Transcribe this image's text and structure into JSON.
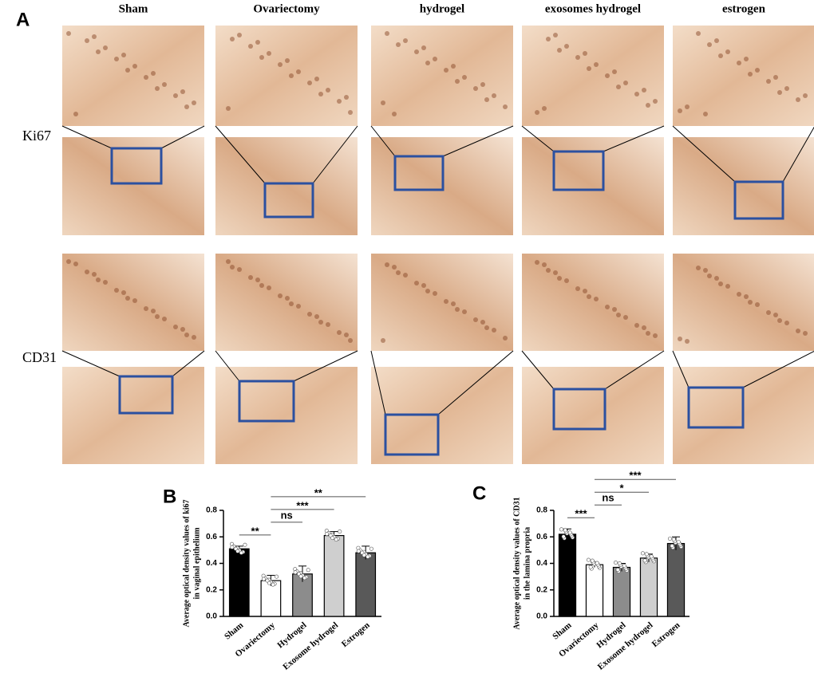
{
  "panel_a": {
    "label": "A",
    "columns": [
      "Sham",
      "Ovariectomy",
      "hydrogel",
      "exosomes hydrogel",
      "estrogen"
    ],
    "rows": [
      "Ki67",
      "CD31"
    ]
  },
  "chart_data": [
    {
      "type": "bar",
      "label": "B",
      "ylabel": [
        "Average optical density values of ki67",
        "in vaginal epithelium"
      ],
      "categories": [
        "Sham",
        "Ovariectomy",
        "Hydrogel",
        "Exosome hydrogel",
        "Estrogen"
      ],
      "values": [
        0.51,
        0.27,
        0.32,
        0.61,
        0.48
      ],
      "errors": [
        0.02,
        0.04,
        0.06,
        0.03,
        0.05
      ],
      "colors": [
        "#000000",
        "#ffffff",
        "#8c8c8c",
        "#cfcfcf",
        "#595959"
      ],
      "ylim": [
        0,
        0.8
      ],
      "yticks": [
        {
          "value": 0,
          "label": "0.0"
        },
        0.2,
        0.4,
        0.6,
        0.8
      ],
      "comparisons": [
        {
          "pair": [
            0,
            1
          ],
          "label": "**"
        },
        {
          "pair": [
            1,
            2
          ],
          "label": "ns"
        },
        {
          "pair": [
            1,
            3
          ],
          "label": "***"
        },
        {
          "pair": [
            1,
            4
          ],
          "label": "**"
        }
      ]
    },
    {
      "type": "bar",
      "label": "C",
      "ylabel": [
        "Average optical density values of CD31",
        "in the lamina propria"
      ],
      "categories": [
        "Sham",
        "Ovariectomy",
        "Hydrogel",
        "Exosome hydrogel",
        "Estrogen"
      ],
      "values": [
        0.62,
        0.39,
        0.37,
        0.44,
        0.55
      ],
      "errors": [
        0.04,
        0.02,
        0.03,
        0.03,
        0.05
      ],
      "colors": [
        "#000000",
        "#ffffff",
        "#8c8c8c",
        "#cfcfcf",
        "#595959"
      ],
      "ylim": [
        0,
        0.8
      ],
      "yticks": [
        {
          "value": 0,
          "label": "0.0"
        },
        0.2,
        0.4,
        0.6,
        0.8
      ],
      "comparisons": [
        {
          "pair": [
            0,
            1
          ],
          "label": "***"
        },
        {
          "pair": [
            1,
            2
          ],
          "label": "ns"
        },
        {
          "pair": [
            1,
            3
          ],
          "label": "*"
        },
        {
          "pair": [
            1,
            4
          ],
          "label": "***"
        }
      ]
    }
  ]
}
